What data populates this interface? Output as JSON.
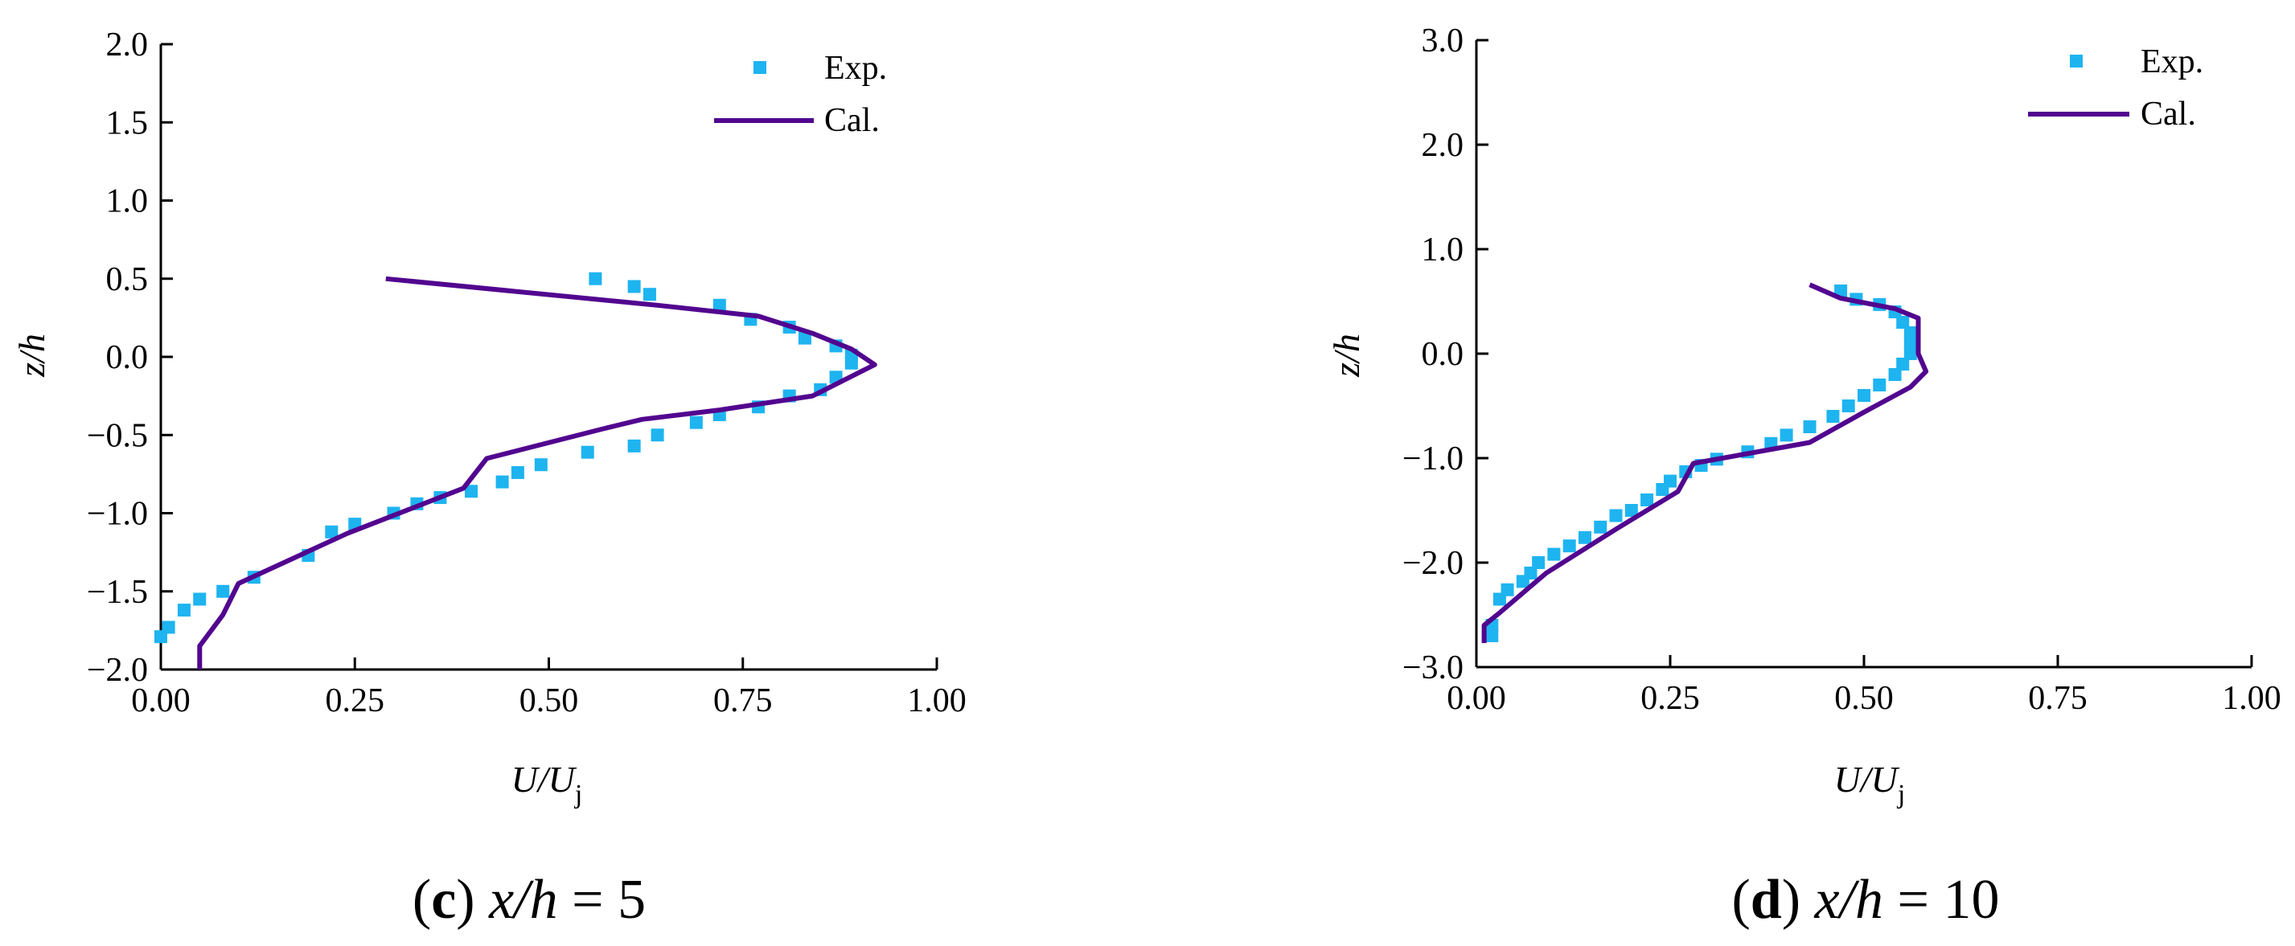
{
  "chart_data": [
    {
      "type": "line",
      "caption": {
        "letter": "c",
        "var": "x/h",
        "eq": " = ",
        "value": "5"
      },
      "xlabel": {
        "main": "U/U",
        "sub": "j"
      },
      "ylabel": "z/h",
      "xlim": [
        0.0,
        1.0
      ],
      "ylim": [
        -2.0,
        2.0
      ],
      "xticks": [
        "0.00",
        "0.25",
        "0.50",
        "0.75",
        "1.00"
      ],
      "yticks": [
        "−2.0",
        "−1.5",
        "−1.0",
        "−0.5",
        "0.0",
        "0.5",
        "1.0",
        "1.5",
        "2.0"
      ],
      "grid": false,
      "legend_position": "top-right",
      "series": [
        {
          "name": "Exp.",
          "kind": "scatter",
          "color": "#1EB4F0",
          "points": [
            [
              0.56,
              0.5
            ],
            [
              0.61,
              0.45
            ],
            [
              0.63,
              0.4
            ],
            [
              0.72,
              0.33
            ],
            [
              0.76,
              0.24
            ],
            [
              0.81,
              0.19
            ],
            [
              0.83,
              0.12
            ],
            [
              0.87,
              0.07
            ],
            [
              0.89,
              0.01
            ],
            [
              0.89,
              -0.04
            ],
            [
              0.87,
              -0.13
            ],
            [
              0.85,
              -0.21
            ],
            [
              0.81,
              -0.25
            ],
            [
              0.77,
              -0.32
            ],
            [
              0.72,
              -0.37
            ],
            [
              0.69,
              -0.42
            ],
            [
              0.64,
              -0.5
            ],
            [
              0.61,
              -0.57
            ],
            [
              0.55,
              -0.61
            ],
            [
              0.49,
              -0.69
            ],
            [
              0.46,
              -0.74
            ],
            [
              0.44,
              -0.8
            ],
            [
              0.4,
              -0.86
            ],
            [
              0.36,
              -0.9
            ],
            [
              0.33,
              -0.94
            ],
            [
              0.3,
              -1.0
            ],
            [
              0.25,
              -1.07
            ],
            [
              0.22,
              -1.12
            ],
            [
              0.19,
              -1.27
            ],
            [
              0.12,
              -1.41
            ],
            [
              0.08,
              -1.5
            ],
            [
              0.05,
              -1.55
            ],
            [
              0.03,
              -1.62
            ],
            [
              0.01,
              -1.73
            ],
            [
              0.0,
              -1.79
            ]
          ]
        },
        {
          "name": "Cal.",
          "kind": "line",
          "color": "#52058F",
          "points": [
            [
              0.29,
              0.5
            ],
            [
              0.64,
              0.33
            ],
            [
              0.77,
              0.26
            ],
            [
              0.84,
              0.15
            ],
            [
              0.89,
              0.05
            ],
            [
              0.92,
              -0.05
            ],
            [
              0.84,
              -0.25
            ],
            [
              0.72,
              -0.34
            ],
            [
              0.62,
              -0.4
            ],
            [
              0.57,
              -0.46
            ],
            [
              0.42,
              -0.65
            ],
            [
              0.39,
              -0.84
            ],
            [
              0.24,
              -1.13
            ],
            [
              0.1,
              -1.45
            ],
            [
              0.09,
              -1.55
            ],
            [
              0.08,
              -1.65
            ],
            [
              0.05,
              -1.85
            ],
            [
              0.05,
              -2.0
            ]
          ]
        }
      ]
    },
    {
      "type": "line",
      "caption": {
        "letter": "d",
        "var": "x/h",
        "eq": " = ",
        "value": "10"
      },
      "xlabel": {
        "main": "U/U",
        "sub": "j"
      },
      "ylabel": "z/h",
      "xlim": [
        0.0,
        1.0
      ],
      "ylim": [
        -3.0,
        3.0
      ],
      "xticks": [
        "0.00",
        "0.25",
        "0.50",
        "0.75",
        "1.00"
      ],
      "yticks": [
        "−3.0",
        "−2.0",
        "−1.0",
        "0.0",
        "1.0",
        "2.0",
        "3.0"
      ],
      "grid": false,
      "legend_position": "top-right",
      "series": [
        {
          "name": "Exp.",
          "kind": "scatter",
          "color": "#1EB4F0",
          "points": [
            [
              0.47,
              0.6
            ],
            [
              0.49,
              0.52
            ],
            [
              0.52,
              0.47
            ],
            [
              0.54,
              0.4
            ],
            [
              0.55,
              0.3
            ],
            [
              0.56,
              0.2
            ],
            [
              0.56,
              0.1
            ],
            [
              0.56,
              0.0
            ],
            [
              0.55,
              -0.1
            ],
            [
              0.54,
              -0.2
            ],
            [
              0.52,
              -0.3
            ],
            [
              0.5,
              -0.4
            ],
            [
              0.48,
              -0.5
            ],
            [
              0.46,
              -0.6
            ],
            [
              0.43,
              -0.7
            ],
            [
              0.4,
              -0.78
            ],
            [
              0.38,
              -0.86
            ],
            [
              0.35,
              -0.94
            ],
            [
              0.31,
              -1.01
            ],
            [
              0.29,
              -1.07
            ],
            [
              0.27,
              -1.13
            ],
            [
              0.25,
              -1.22
            ],
            [
              0.24,
              -1.3
            ],
            [
              0.22,
              -1.4
            ],
            [
              0.2,
              -1.5
            ],
            [
              0.18,
              -1.55
            ],
            [
              0.16,
              -1.66
            ],
            [
              0.14,
              -1.76
            ],
            [
              0.12,
              -1.84
            ],
            [
              0.1,
              -1.92
            ],
            [
              0.08,
              -2.0
            ],
            [
              0.07,
              -2.1
            ],
            [
              0.06,
              -2.18
            ],
            [
              0.04,
              -2.26
            ],
            [
              0.03,
              -2.35
            ],
            [
              0.02,
              -2.6
            ],
            [
              0.02,
              -2.7
            ]
          ]
        },
        {
          "name": "Cal.",
          "kind": "line",
          "color": "#52058F",
          "points": [
            [
              0.43,
              0.66
            ],
            [
              0.47,
              0.53
            ],
            [
              0.54,
              0.43
            ],
            [
              0.57,
              0.34
            ],
            [
              0.57,
              0.2
            ],
            [
              0.57,
              0.0
            ],
            [
              0.58,
              -0.17
            ],
            [
              0.56,
              -0.32
            ],
            [
              0.5,
              -0.56
            ],
            [
              0.43,
              -0.85
            ],
            [
              0.28,
              -1.05
            ],
            [
              0.26,
              -1.32
            ],
            [
              0.18,
              -1.68
            ],
            [
              0.09,
              -2.1
            ],
            [
              0.03,
              -2.48
            ],
            [
              0.01,
              -2.6
            ],
            [
              0.01,
              -2.77
            ]
          ]
        }
      ]
    }
  ]
}
